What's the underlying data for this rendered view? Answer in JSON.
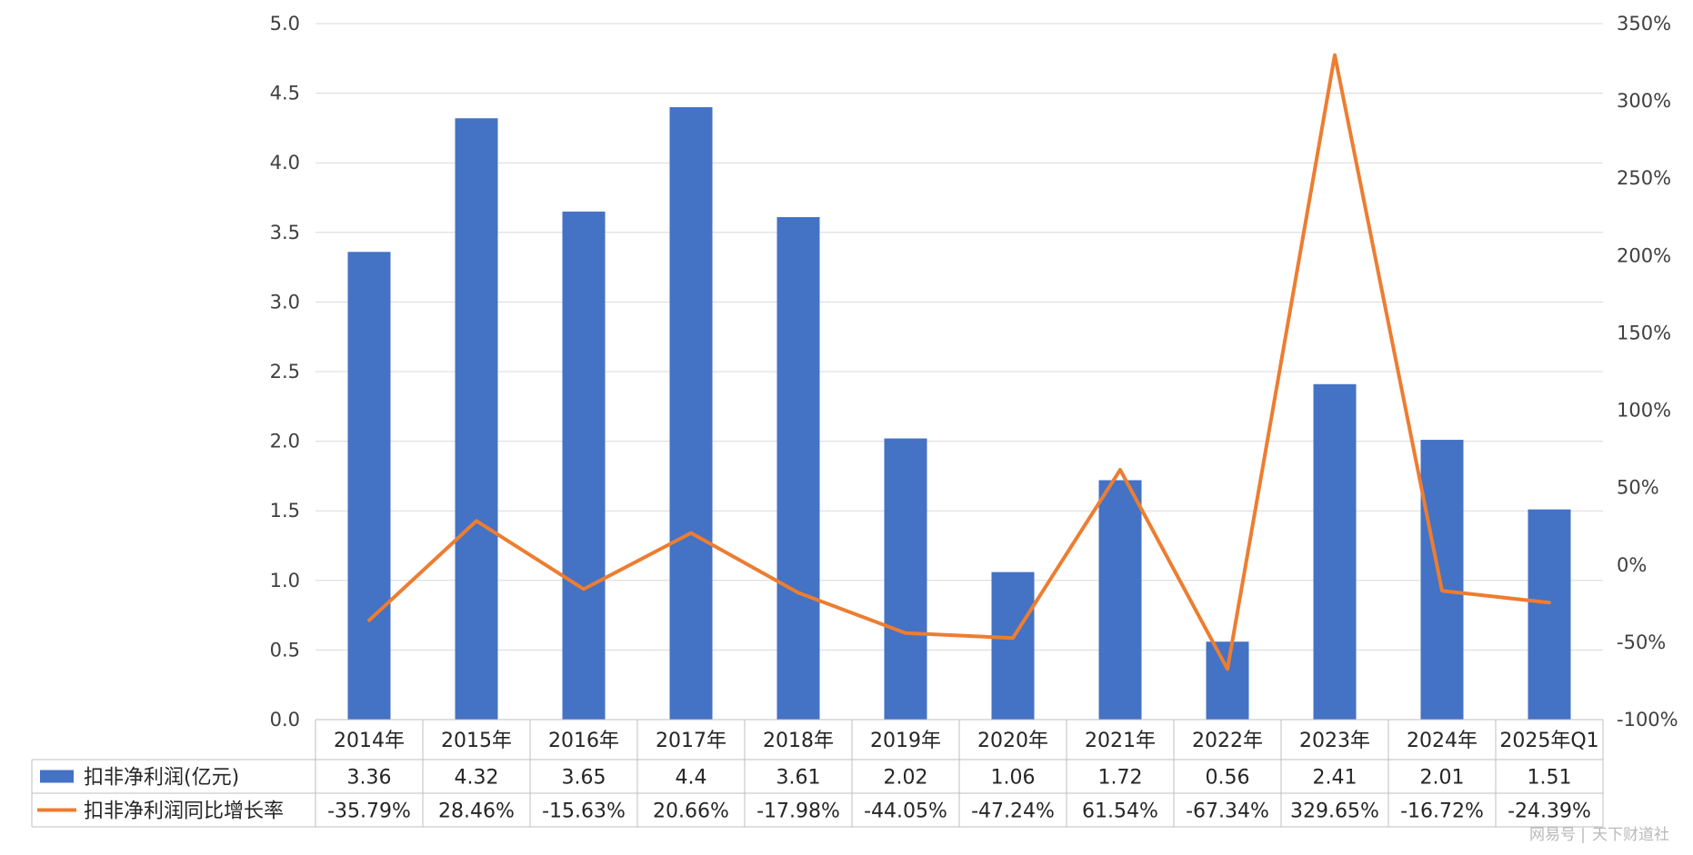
{
  "chart_data": {
    "type": "bar",
    "categories": [
      "2014年",
      "2015年",
      "2016年",
      "2017年",
      "2018年",
      "2019年",
      "2020年",
      "2021年",
      "2022年",
      "2023年",
      "2024年",
      "2025年Q1"
    ],
    "series": [
      {
        "name": "扣非净利润(亿元)",
        "type": "bar",
        "axis": "left",
        "color": "#4472C4",
        "values": [
          3.36,
          4.32,
          3.65,
          4.4,
          3.61,
          2.02,
          1.06,
          1.72,
          0.56,
          2.41,
          2.01,
          1.51
        ],
        "labels": [
          "3.36",
          "4.32",
          "3.65",
          "4.4",
          "3.61",
          "2.02",
          "1.06",
          "1.72",
          "0.56",
          "2.41",
          "2.01",
          "1.51"
        ]
      },
      {
        "name": "扣非净利润同比增长率",
        "type": "line",
        "axis": "right",
        "color": "#ED7D31",
        "values": [
          -35.79,
          28.46,
          -15.63,
          20.66,
          -17.98,
          -44.05,
          -47.24,
          61.54,
          -67.34,
          329.65,
          -16.72,
          -24.39
        ],
        "labels": [
          "-35.79%",
          "28.46%",
          "-15.63%",
          "20.66%",
          "-17.98%",
          "-44.05%",
          "-47.24%",
          "61.54%",
          "-67.34%",
          "329.65%",
          "-16.72%",
          "-24.39%"
        ]
      }
    ],
    "y_left": {
      "range": [
        0,
        5
      ],
      "ticks": [
        "0.0",
        "0.5",
        "1.0",
        "1.5",
        "2.0",
        "2.5",
        "3.0",
        "3.5",
        "4.0",
        "4.5",
        "5.0"
      ]
    },
    "y_right": {
      "range": [
        -100,
        350
      ],
      "ticks": [
        "-100%",
        "-50%",
        "0%",
        "50%",
        "100%",
        "150%",
        "200%",
        "250%",
        "300%",
        "350%"
      ]
    },
    "grid": true,
    "legend": "data-table-below"
  },
  "watermark": {
    "site": "网易号",
    "separator": "|",
    "author": "天下财道社"
  }
}
